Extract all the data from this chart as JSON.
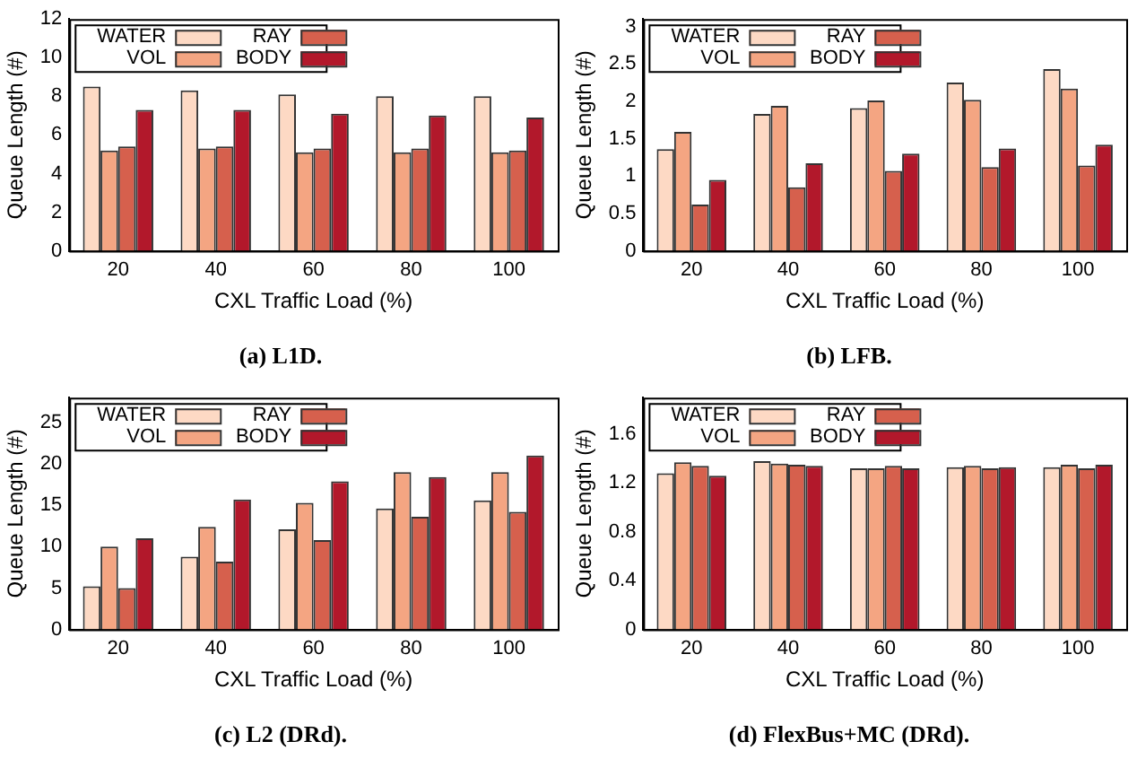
{
  "chart_data": [
    {
      "type": "bar",
      "title": "(a) L1D.",
      "xlabel": "CXL Traffic Load (%)",
      "ylabel": "Queue Length (#)",
      "categories": [
        "20",
        "40",
        "60",
        "80",
        "100"
      ],
      "series": [
        {
          "name": "WATER",
          "color": "#fdd9c4",
          "values": [
            8.5,
            8.3,
            8.1,
            8.0,
            8.0
          ]
        },
        {
          "name": "VOL",
          "color": "#f4a582",
          "values": [
            5.2,
            5.3,
            5.1,
            5.1,
            5.1
          ]
        },
        {
          "name": "RAY",
          "color": "#d6604d",
          "values": [
            5.4,
            5.4,
            5.3,
            5.3,
            5.2
          ]
        },
        {
          "name": "BODY",
          "color": "#b2182b",
          "values": [
            7.3,
            7.3,
            7.1,
            7.0,
            6.9
          ]
        }
      ],
      "ylim": [
        0,
        12
      ],
      "yticks": [
        0,
        2,
        4,
        6,
        8,
        10,
        12
      ],
      "legend": "top left",
      "grid": false
    },
    {
      "type": "bar",
      "title": "(b) LFB.",
      "xlabel": "CXL Traffic Load (%)",
      "ylabel": "Queue Length (#)",
      "categories": [
        "20",
        "40",
        "60",
        "80",
        "100"
      ],
      "series": [
        {
          "name": "WATER",
          "color": "#fdd9c4",
          "values": [
            1.36,
            1.83,
            1.91,
            2.25,
            2.43
          ]
        },
        {
          "name": "VOL",
          "color": "#f4a582",
          "values": [
            1.59,
            1.94,
            2.01,
            2.02,
            2.17
          ]
        },
        {
          "name": "RAY",
          "color": "#d6604d",
          "values": [
            0.62,
            0.85,
            1.07,
            1.12,
            1.14
          ]
        },
        {
          "name": "BODY",
          "color": "#b2182b",
          "values": [
            0.95,
            1.17,
            1.3,
            1.37,
            1.42
          ]
        }
      ],
      "ylim": [
        0,
        3.1
      ],
      "yticks": [
        0,
        0.5,
        1,
        1.5,
        2,
        2.5,
        3
      ],
      "legend": "top left",
      "grid": false
    },
    {
      "type": "bar",
      "title": "(c) L2 (DRd).",
      "xlabel": "CXL Traffic Load (%)",
      "ylabel": "Queue Length (#)",
      "categories": [
        "20",
        "40",
        "60",
        "80",
        "100"
      ],
      "series": [
        {
          "name": "WATER",
          "color": "#fdd9c4",
          "values": [
            5.2,
            8.8,
            12.1,
            14.6,
            15.6
          ]
        },
        {
          "name": "VOL",
          "color": "#f4a582",
          "values": [
            10,
            12.4,
            15.3,
            19,
            19
          ]
        },
        {
          "name": "RAY",
          "color": "#d6604d",
          "values": [
            5.0,
            8.2,
            10.8,
            13.6,
            14.2
          ]
        },
        {
          "name": "BODY",
          "color": "#b2182b",
          "values": [
            11,
            15.7,
            17.9,
            18.4,
            21
          ]
        }
      ],
      "ylim": [
        0,
        28
      ],
      "yticks": [
        0,
        5,
        10,
        15,
        20,
        25
      ],
      "legend": "top left",
      "grid": false
    },
    {
      "type": "bar",
      "title": "(d) FlexBus+MC (DRd).",
      "xlabel": "CXL Traffic Load (%)",
      "ylabel": "Queue Length (#)",
      "categories": [
        "20",
        "40",
        "60",
        "80",
        "100"
      ],
      "series": [
        {
          "name": "WATER",
          "color": "#fdd9c4",
          "values": [
            1.28,
            1.38,
            1.32,
            1.33,
            1.33
          ]
        },
        {
          "name": "VOL",
          "color": "#f4a582",
          "values": [
            1.37,
            1.36,
            1.32,
            1.34,
            1.35
          ]
        },
        {
          "name": "RAY",
          "color": "#d6604d",
          "values": [
            1.34,
            1.35,
            1.34,
            1.32,
            1.32
          ]
        },
        {
          "name": "BODY",
          "color": "#b2182b",
          "values": [
            1.26,
            1.34,
            1.32,
            1.33,
            1.35
          ]
        }
      ],
      "ylim": [
        0,
        1.9
      ],
      "yticks": [
        0,
        0.4,
        0.8,
        1.2,
        1.6
      ],
      "legend": "top left",
      "grid": false
    }
  ]
}
